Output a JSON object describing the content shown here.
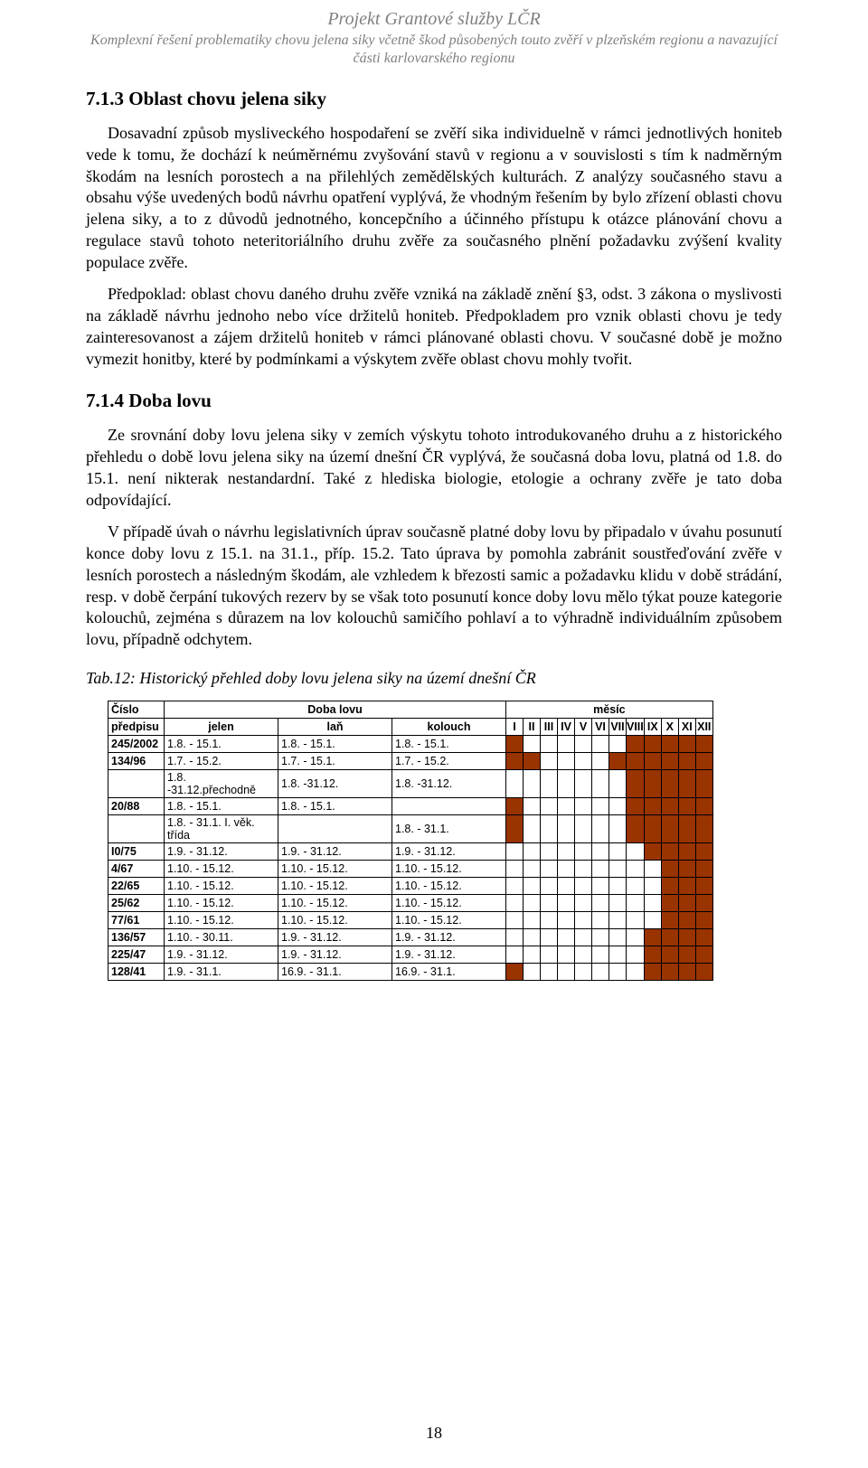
{
  "colors": {
    "header_grey": "#808080",
    "text_black": "#000000",
    "table_fill": "#993300",
    "table_empty": "#ffffff"
  },
  "header": {
    "project": "Projekt Grantové služby LČR",
    "subtitle": "Komplexní řešení problematiky chovu jelena siky včetně škod působených touto zvěří v plzeňském regionu a navazující části karlovarského regionu"
  },
  "section_713_title": "7.1.3  Oblast chovu jelena siky",
  "p713_1": "Dosavadní způsob mysliveckého hospodaření se zvěří sika individuelně v rámci jednotlivých honiteb vede k tomu, že dochází k neúměrnému zvyšování stavů v regionu a v souvislosti s tím k nadměrným škodám na lesních porostech a na přilehlých zemědělských kulturách. Z analýzy současného stavu a obsahu výše uvedených bodů návrhu opatření vyplývá, že vhodným řešením by bylo zřízení oblasti chovu jelena siky, a to z důvodů jednotného, koncepčního a účinného přístupu k otázce plánování chovu a regulace stavů tohoto neteritoriálního druhu zvěře za současného plnění požadavku zvýšení kvality populace zvěře.",
  "p713_2": "Předpoklad: oblast chovu daného druhu zvěře vzniká na základě znění §3, odst. 3 zákona o myslivosti na základě návrhu jednoho nebo více držitelů honiteb. Předpokladem pro vznik oblasti chovu je tedy zainteresovanost a zájem držitelů honiteb v rámci plánované oblasti chovu. V současné době je možno vymezit honitby, které by podmínkami a výskytem zvěře oblast chovu mohly tvořit.",
  "section_714_title": "7.1.4  Doba lovu",
  "p714_1": "Ze srovnání doby lovu jelena siky v zemích výskytu tohoto introdukovaného druhu a z historického přehledu o době lovu jelena siky na území dnešní ČR vyplývá, že současná doba lovu, platná  od 1.8. do 15.1. není nikterak nestandardní. Také z hlediska biologie, etologie a ochrany zvěře je tato doba odpovídající.",
  "p714_2": "V případě úvah o návrhu legislativních úprav současně platné doby lovu by připadalo v úvahu posunutí konce doby lovu z 15.1. na 31.1., příp. 15.2. Tato úprava by pomohla zabránit soustřeďování zvěře v lesních porostech a následným škodám, ale vzhledem k březosti samic a požadavku klidu v době strádání, resp. v době čerpání tukových rezerv by se však toto posunutí konce doby lovu mělo týkat pouze kategorie kolouchů, zejména s důrazem na lov kolouchů samičího pohlaví a to výhradně individuálním způsobem lovu, případně odchytem.",
  "table_caption": "Tab.12:  Historický přehled doby lovu jelena siky na území dnešní ČR",
  "table": {
    "head1_left": "Číslo",
    "head1_mid": "Doba lovu",
    "head1_right": "měsíc",
    "head2_pred": "předpisu",
    "head2_cols": [
      "jelen",
      "laň",
      "kolouch"
    ],
    "months": [
      "I",
      "II",
      "III",
      "IV",
      "V",
      "VI",
      "VII",
      "VIII",
      "IX",
      "X",
      "XI",
      "XII"
    ],
    "rows": [
      {
        "pred": "245/2002",
        "cells": [
          "1.8. - 15.1.",
          "1.8. - 15.1.",
          "1.8. - 15.1."
        ],
        "fill": [
          1,
          0,
          0,
          0,
          0,
          0,
          0,
          1,
          1,
          1,
          1,
          1
        ]
      },
      {
        "pred": "134/96",
        "cells": [
          "1.7. - 15.2.",
          "1.7. - 15.1.",
          "1.7. - 15.2."
        ],
        "fill": [
          1,
          1,
          0,
          0,
          0,
          0,
          1,
          1,
          1,
          1,
          1,
          1
        ]
      },
      {
        "pred": "",
        "cells": [
          "1.8. -31.12.přechodně",
          "1.8. -31.12.",
          "1.8. -31.12."
        ],
        "fill": [
          0,
          0,
          0,
          0,
          0,
          0,
          0,
          1,
          1,
          1,
          1,
          1
        ]
      },
      {
        "pred": "20/88",
        "cells": [
          "1.8. - 15.1.",
          "1.8. - 15.1.",
          ""
        ],
        "fill": [
          1,
          0,
          0,
          0,
          0,
          0,
          0,
          1,
          1,
          1,
          1,
          1
        ]
      },
      {
        "pred": "",
        "cells": [
          "1.8. - 31.1. I. věk. třída",
          "",
          "1.8. - 31.1."
        ],
        "fill": [
          1,
          0,
          0,
          0,
          0,
          0,
          0,
          1,
          1,
          1,
          1,
          1
        ]
      },
      {
        "pred": "I0/75",
        "cells": [
          "1.9. - 31.12.",
          "1.9. - 31.12.",
          "1.9. - 31.12."
        ],
        "fill": [
          0,
          0,
          0,
          0,
          0,
          0,
          0,
          0,
          1,
          1,
          1,
          1
        ]
      },
      {
        "pred": "4/67",
        "cells": [
          "1.10. - 15.12.",
          "1.10. - 15.12.",
          "1.10. - 15.12."
        ],
        "fill": [
          0,
          0,
          0,
          0,
          0,
          0,
          0,
          0,
          0,
          1,
          1,
          1
        ]
      },
      {
        "pred": "22/65",
        "cells": [
          "1.10. - 15.12.",
          "1.10. - 15.12.",
          "1.10. - 15.12."
        ],
        "fill": [
          0,
          0,
          0,
          0,
          0,
          0,
          0,
          0,
          0,
          1,
          1,
          1
        ]
      },
      {
        "pred": "25/62",
        "cells": [
          "1.10. - 15.12.",
          "1.10. - 15.12.",
          "1.10. - 15.12."
        ],
        "fill": [
          0,
          0,
          0,
          0,
          0,
          0,
          0,
          0,
          0,
          1,
          1,
          1
        ]
      },
      {
        "pred": "77/61",
        "cells": [
          "1.10. - 15.12.",
          "1.10. - 15.12.",
          "1.10. - 15.12."
        ],
        "fill": [
          0,
          0,
          0,
          0,
          0,
          0,
          0,
          0,
          0,
          1,
          1,
          1
        ]
      },
      {
        "pred": "136/57",
        "cells": [
          "1.10. - 30.11.",
          "1.9. - 31.12.",
          "1.9. - 31.12."
        ],
        "fill": [
          0,
          0,
          0,
          0,
          0,
          0,
          0,
          0,
          1,
          1,
          1,
          1
        ]
      },
      {
        "pred": "225/47",
        "cells": [
          "1.9. - 31.12.",
          "1.9. - 31.12.",
          "1.9. - 31.12."
        ],
        "fill": [
          0,
          0,
          0,
          0,
          0,
          0,
          0,
          0,
          1,
          1,
          1,
          1
        ]
      },
      {
        "pred": "128/41",
        "cells": [
          "1.9. - 31.1.",
          "16.9. - 31.1.",
          "16.9. - 31.1."
        ],
        "fill": [
          1,
          0,
          0,
          0,
          0,
          0,
          0,
          0,
          1,
          1,
          1,
          1
        ]
      }
    ]
  },
  "page_number": "18"
}
